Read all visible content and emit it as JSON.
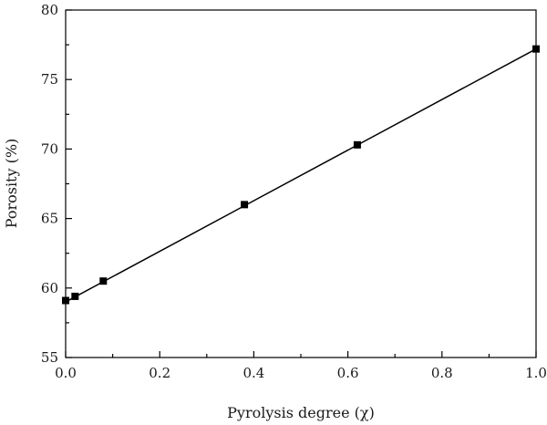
{
  "chart_data": {
    "type": "line",
    "title": "",
    "xlabel": "Pyrolysis degree (χ)",
    "ylabel": "Porosity (%)",
    "xlim": [
      0.0,
      1.0
    ],
    "ylim": [
      55,
      80
    ],
    "xticks": [
      0.0,
      0.2,
      0.4,
      0.6,
      0.8,
      1.0
    ],
    "xtick_labels": [
      "0.0",
      "0.2",
      "0.4",
      "0.6",
      "0.8",
      "1.0"
    ],
    "yticks": [
      55,
      60,
      65,
      70,
      75,
      80
    ],
    "ytick_labels": [
      "55",
      "60",
      "65",
      "70",
      "75",
      "80"
    ],
    "grid": false,
    "legend": "none",
    "series": [
      {
        "marker": "square",
        "color": "#000000",
        "x": [
          0.0,
          0.02,
          0.08,
          0.38,
          0.62,
          1.0
        ],
        "y": [
          59.1,
          59.4,
          60.5,
          66.0,
          70.3,
          77.2
        ]
      }
    ],
    "fit_line": {
      "x": [
        0.0,
        1.0
      ],
      "y": [
        59.0,
        77.2
      ],
      "color": "#000000"
    }
  }
}
